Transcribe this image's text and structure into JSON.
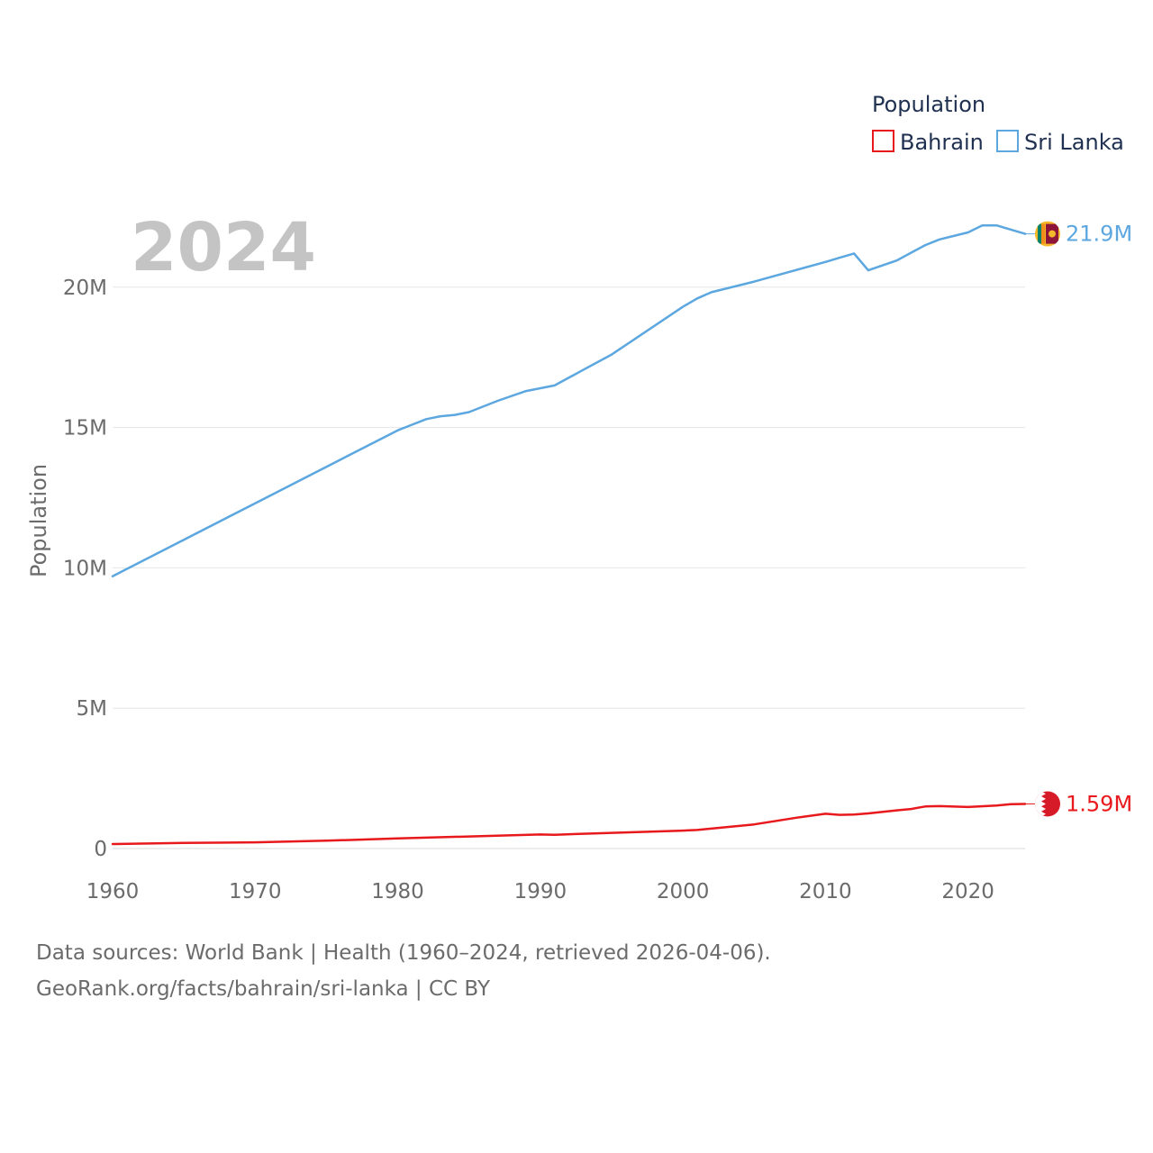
{
  "chart_data": {
    "type": "line",
    "title": "Population",
    "year_label": "2024",
    "xlabel": "",
    "ylabel": "Population",
    "xlim": [
      1960,
      2024
    ],
    "ylim": [
      0,
      23000000
    ],
    "x_ticks": [
      {
        "value": 1960,
        "label": "1960"
      },
      {
        "value": 1970,
        "label": "1970"
      },
      {
        "value": 1980,
        "label": "1980"
      },
      {
        "value": 1990,
        "label": "1990"
      },
      {
        "value": 2000,
        "label": "2000"
      },
      {
        "value": 2010,
        "label": "2010"
      },
      {
        "value": 2020,
        "label": "2020"
      }
    ],
    "y_ticks": [
      {
        "value": 0,
        "label": "0"
      },
      {
        "value": 5000000,
        "label": "5M"
      },
      {
        "value": 10000000,
        "label": "10M"
      },
      {
        "value": 15000000,
        "label": "15M"
      },
      {
        "value": 20000000,
        "label": "20M"
      }
    ],
    "grid": true,
    "legend_position": "top-right",
    "series": [
      {
        "name": "Bahrain",
        "color": "#e8191c",
        "end_label": "1.59M",
        "flag_icon": "bahrain-flag-icon",
        "x": [
          1960,
          1965,
          1970,
          1975,
          1980,
          1985,
          1990,
          1991,
          1995,
          2000,
          2001,
          2005,
          2008,
          2010,
          2011,
          2012,
          2013,
          2015,
          2016,
          2017,
          2018,
          2020,
          2022,
          2023,
          2024
        ],
        "values": [
          160000,
          200000,
          220000,
          280000,
          360000,
          430000,
          500000,
          490000,
          560000,
          640000,
          660000,
          860000,
          1100000,
          1240000,
          1200000,
          1210000,
          1250000,
          1360000,
          1410000,
          1500000,
          1510000,
          1480000,
          1530000,
          1580000,
          1590000
        ]
      },
      {
        "name": "Sri Lanka",
        "color": "#5ca7e0",
        "end_label": "21.9M",
        "flag_icon": "sri-lanka-flag-icon",
        "x": [
          1960,
          1965,
          1970,
          1975,
          1980,
          1981,
          1982,
          1983,
          1984,
          1985,
          1987,
          1989,
          1991,
          1993,
          1995,
          2000,
          2001,
          2002,
          2005,
          2010,
          2011,
          2012,
          2013,
          2015,
          2017,
          2018,
          2020,
          2021,
          2022,
          2024
        ],
        "values": [
          9700000,
          11000000,
          12300000,
          13600000,
          14900000,
          15100000,
          15300000,
          15400000,
          15450000,
          15550000,
          15950000,
          16300000,
          16500000,
          17050000,
          17600000,
          19300000,
          19600000,
          19820000,
          20200000,
          20900000,
          21050000,
          21200000,
          20600000,
          20950000,
          21500000,
          21700000,
          21950000,
          22200000,
          22200000,
          21900000
        ]
      }
    ]
  },
  "source": {
    "line1": "Data sources: World Bank | Health (1960–2024, retrieved 2026-04-06).",
    "line2": "GeoRank.org/facts/bahrain/sri-lanka | CC BY"
  }
}
